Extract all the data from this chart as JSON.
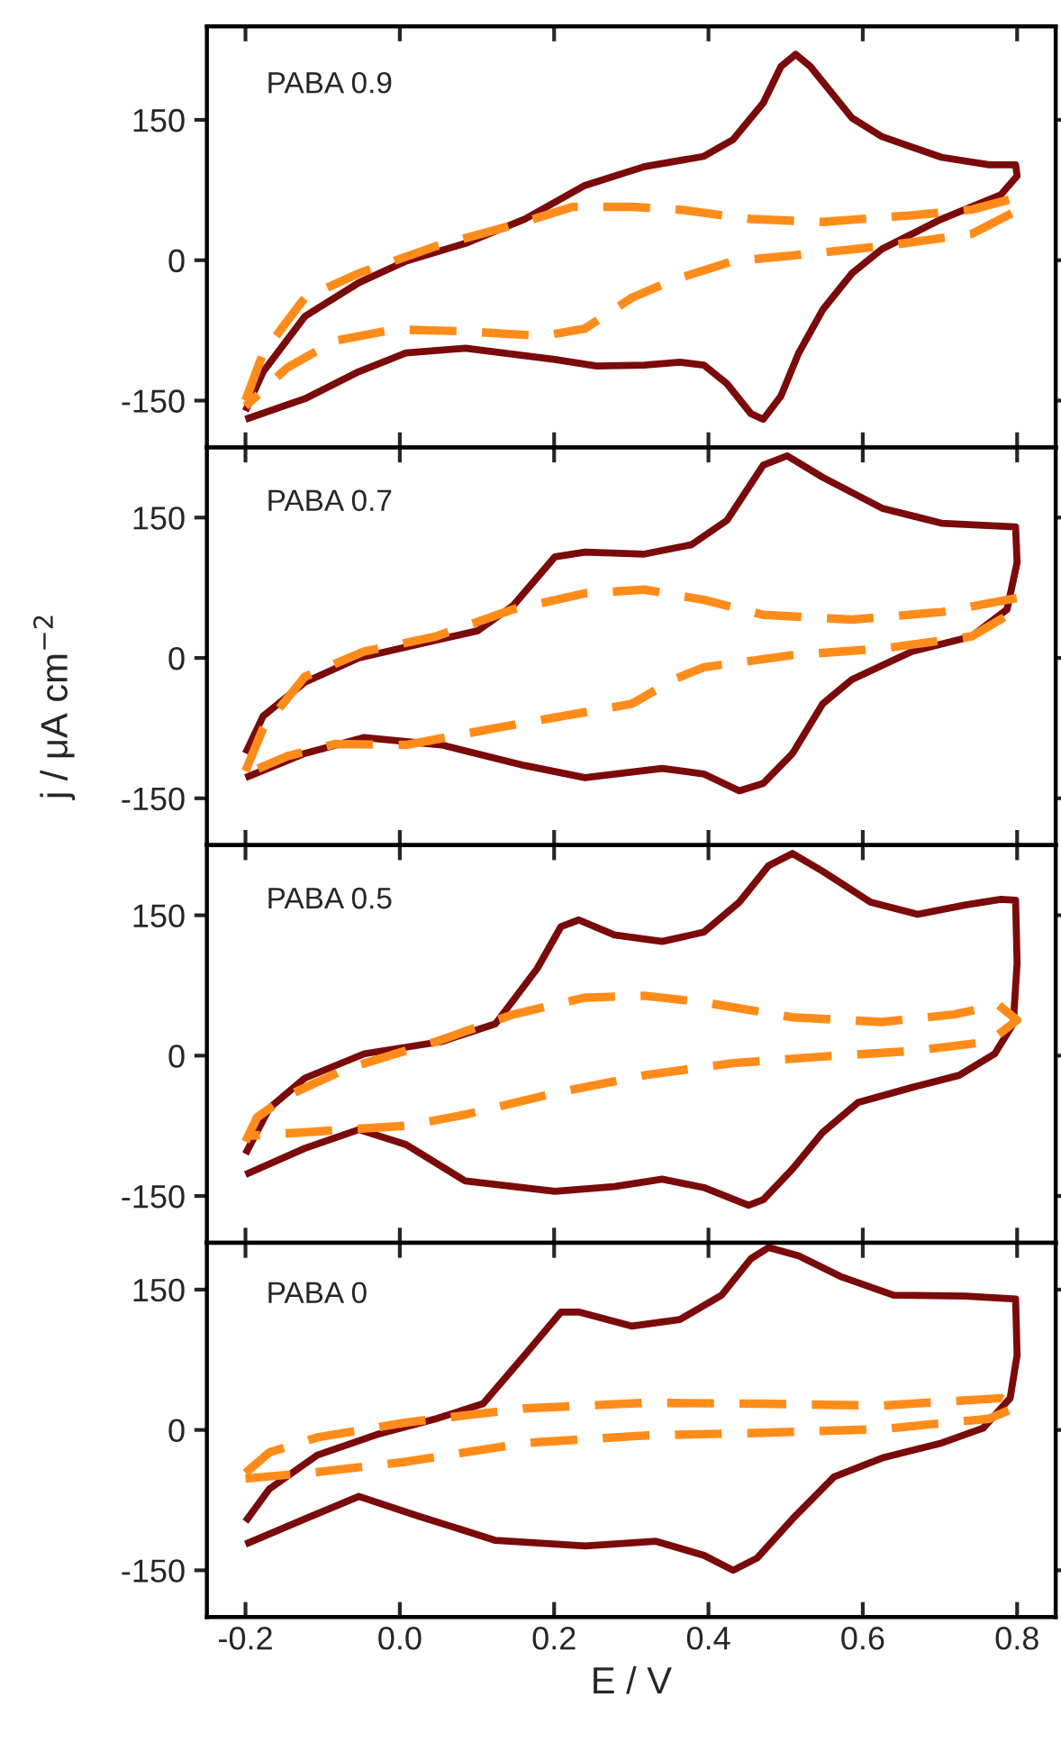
{
  "chart_data": [
    {
      "type": "line",
      "annotations": [
        "PABA 0.9"
      ],
      "xlim": [
        -0.25,
        0.85
      ],
      "xticks": [
        -0.2,
        0.0,
        0.2,
        0.4,
        0.6,
        0.8
      ],
      "ylim": [
        -200,
        250
      ],
      "yticks": [
        -150,
        0,
        150
      ],
      "tick_labels": "y",
      "grid": false,
      "legend": false,
      "series": [
        {
          "color": "#7b0a0a",
          "line_style": "solid",
          "x": [
            -0.2,
            -0.177,
            -0.123,
            -0.053,
            0.008,
            0.085,
            0.162,
            0.24,
            0.317,
            0.394,
            0.432,
            0.471,
            0.494,
            0.513,
            0.532,
            0.586,
            0.625,
            0.702,
            0.764,
            0.798,
            0.8,
            0.779,
            0.702,
            0.625,
            0.586,
            0.548,
            0.517,
            0.494,
            0.471,
            0.455,
            0.424,
            0.394,
            0.363,
            0.317,
            0.255,
            0.201,
            0.085,
            0.008,
            -0.053,
            -0.123,
            -0.2
          ],
          "values": [
            -161,
            -119,
            -60,
            -24,
            -1,
            18,
            44,
            80,
            100,
            111,
            129,
            168,
            207,
            220,
            207,
            152,
            132,
            110,
            102,
            102,
            90,
            70,
            44,
            12,
            -14,
            -53,
            -99,
            -145,
            -170,
            -164,
            -132,
            -112,
            -109,
            -112,
            -113,
            -106,
            -94,
            -99,
            -119,
            -148,
            -170
          ]
        },
        {
          "color": "#ff8c1a",
          "line_style": "dashed",
          "x": [
            -0.2,
            -0.177,
            -0.123,
            -0.053,
            0.047,
            0.162,
            0.224,
            0.301,
            0.363,
            0.455,
            0.548,
            0.664,
            0.741,
            0.8,
            0.795,
            0.741,
            0.625,
            0.509,
            0.432,
            0.355,
            0.301,
            0.24,
            0.186,
            0.085,
            -0.007,
            -0.084,
            -0.146,
            -0.2
          ],
          "values": [
            -150,
            -99,
            -40,
            -14,
            15,
            41,
            57,
            57,
            54,
            44,
            41,
            48,
            54,
            67,
            51,
            28,
            15,
            5,
            -1,
            -21,
            -40,
            -73,
            -81,
            -76,
            -74,
            -86,
            -115,
            -156
          ]
        }
      ]
    },
    {
      "type": "line",
      "annotations": [
        "PABA 0.7"
      ],
      "ylabel": "j / μA cm$^{−2}$",
      "xlim": [
        -0.25,
        0.85
      ],
      "xticks": [
        -0.2,
        0.0,
        0.2,
        0.4,
        0.6,
        0.8
      ],
      "ylim": [
        -200,
        225
      ],
      "yticks": [
        -150,
        0,
        150
      ],
      "tick_labels": "y",
      "grid": false,
      "legend": false,
      "series": [
        {
          "color": "#7b0a0a",
          "line_style": "solid",
          "x": [
            -0.2,
            -0.177,
            -0.123,
            -0.053,
            0.031,
            0.101,
            0.147,
            0.201,
            0.24,
            0.317,
            0.378,
            0.424,
            0.471,
            0.502,
            0.548,
            0.625,
            0.702,
            0.798,
            0.8,
            0.787,
            0.741,
            0.664,
            0.586,
            0.548,
            0.509,
            0.471,
            0.44,
            0.394,
            0.34,
            0.24,
            0.162,
            0.054,
            -0.046,
            -0.123,
            -0.2
          ],
          "values": [
            -102,
            -62,
            -26,
            0,
            16,
            29,
            56,
            108,
            113,
            111,
            121,
            147,
            206,
            216,
            193,
            160,
            144,
            140,
            102,
            52,
            23,
            7,
            -23,
            -49,
            -102,
            -134,
            -142,
            -124,
            -118,
            -128,
            -115,
            -93,
            -85,
            -102,
            -128
          ]
        },
        {
          "color": "#ff8c1a",
          "line_style": "dashed",
          "x": [
            -0.2,
            -0.177,
            -0.123,
            -0.046,
            0.047,
            0.147,
            0.24,
            0.317,
            0.394,
            0.471,
            0.586,
            0.702,
            0.8,
            0.795,
            0.741,
            0.625,
            0.509,
            0.394,
            0.355,
            0.301,
            0.24,
            0.124,
            0.008,
            -0.084,
            -0.146,
            -0.2
          ],
          "values": [
            -121,
            -75,
            -20,
            7,
            23,
            52,
            69,
            73,
            62,
            46,
            41,
            49,
            64,
            49,
            23,
            10,
            3,
            -10,
            -23,
            -49,
            -58,
            -75,
            -93,
            -92,
            -105,
            -124
          ]
        }
      ]
    },
    {
      "type": "line",
      "annotations": [
        "PABA 0.5"
      ],
      "xlim": [
        -0.25,
        0.85
      ],
      "xticks": [
        -0.2,
        0.0,
        0.2,
        0.4,
        0.6,
        0.8
      ],
      "ylim": [
        -200,
        225
      ],
      "yticks": [
        -150,
        0,
        150
      ],
      "tick_labels": "y",
      "grid": false,
      "legend": false,
      "series": [
        {
          "color": "#7b0a0a",
          "line_style": "solid",
          "x": [
            -0.2,
            -0.169,
            -0.123,
            -0.046,
            0.054,
            0.124,
            0.178,
            0.209,
            0.232,
            0.278,
            0.34,
            0.394,
            0.44,
            0.478,
            0.509,
            0.548,
            0.61,
            0.671,
            0.733,
            0.779,
            0.798,
            0.8,
            0.795,
            0.771,
            0.725,
            0.664,
            0.594,
            0.548,
            0.509,
            0.471,
            0.452,
            0.394,
            0.34,
            0.278,
            0.201,
            0.085,
            0.008,
            -0.053,
            -0.123,
            -0.2
          ],
          "values": [
            -105,
            -56,
            -24,
            2,
            15,
            34,
            93,
            138,
            145,
            129,
            122,
            132,
            164,
            203,
            216,
            197,
            164,
            151,
            161,
            167,
            166,
            99,
            34,
            2,
            -21,
            -34,
            -50,
            -82,
            -121,
            -154,
            -160,
            -141,
            -132,
            -140,
            -145,
            -134,
            -95,
            -79,
            -99,
            -127
          ]
        },
        {
          "color": "#ff8c1a",
          "line_style": "dashed",
          "x": [
            -0.2,
            -0.185,
            -0.146,
            -0.069,
            0.047,
            0.147,
            0.24,
            0.317,
            0.394,
            0.509,
            0.625,
            0.718,
            0.776,
            0.8,
            0.764,
            0.664,
            0.548,
            0.432,
            0.317,
            0.201,
            0.085,
            0.008,
            -0.107,
            -0.2
          ],
          "values": [
            -92,
            -66,
            -43,
            -14,
            15,
            44,
            62,
            64,
            57,
            41,
            36,
            44,
            54,
            38,
            15,
            5,
            -1,
            -8,
            -21,
            -40,
            -63,
            -75,
            -81,
            -86
          ]
        }
      ]
    },
    {
      "type": "line",
      "annotations": [
        "PABA 0"
      ],
      "xlabel": "E / V",
      "xlim": [
        -0.25,
        0.85
      ],
      "xticks": [
        {
          "value": -0.2,
          "label": "-0.2"
        },
        {
          "value": 0.0,
          "label": "0.0"
        },
        {
          "value": 0.2,
          "label": "0.2"
        },
        {
          "value": 0.4,
          "label": "0.4"
        },
        {
          "value": 0.6,
          "label": "0.6"
        },
        {
          "value": 0.8,
          "label": "0.8"
        }
      ],
      "ylim": [
        -200,
        200
      ],
      "yticks": [
        -150,
        0,
        150
      ],
      "grid": false,
      "legend": false,
      "series": [
        {
          "color": "#7b0a0a",
          "line_style": "solid",
          "x": [
            -0.2,
            -0.169,
            -0.107,
            -0.03,
            0.047,
            0.108,
            0.162,
            0.209,
            0.232,
            0.301,
            0.363,
            0.417,
            0.455,
            0.478,
            0.517,
            0.571,
            0.64,
            0.733,
            0.798,
            0.8,
            0.791,
            0.756,
            0.702,
            0.625,
            0.563,
            0.509,
            0.463,
            0.432,
            0.394,
            0.332,
            0.24,
            0.124,
            0.024,
            -0.053,
            -0.123,
            -0.2
          ],
          "values": [
            -98,
            -63,
            -27,
            -5,
            12,
            28,
            80,
            126,
            126,
            111,
            118,
            144,
            183,
            195,
            186,
            164,
            144,
            143,
            140,
            80,
            34,
            2,
            -14,
            -30,
            -50,
            -95,
            -137,
            -150,
            -134,
            -119,
            -124,
            -118,
            -92,
            -71,
            -95,
            -122
          ]
        },
        {
          "color": "#ff8c1a",
          "line_style": "dashed",
          "x": [
            -0.2,
            -0.169,
            -0.107,
            0.008,
            0.162,
            0.317,
            0.471,
            0.625,
            0.779,
            0.8,
            0.764,
            0.625,
            0.471,
            0.317,
            0.162,
            0.008,
            -0.107,
            -0.2
          ],
          "values": [
            -46,
            -24,
            -8,
            8,
            23,
            29,
            28,
            26,
            34,
            25,
            12,
            1,
            -3,
            -6,
            -14,
            -34,
            -45,
            -52
          ]
        }
      ]
    }
  ]
}
